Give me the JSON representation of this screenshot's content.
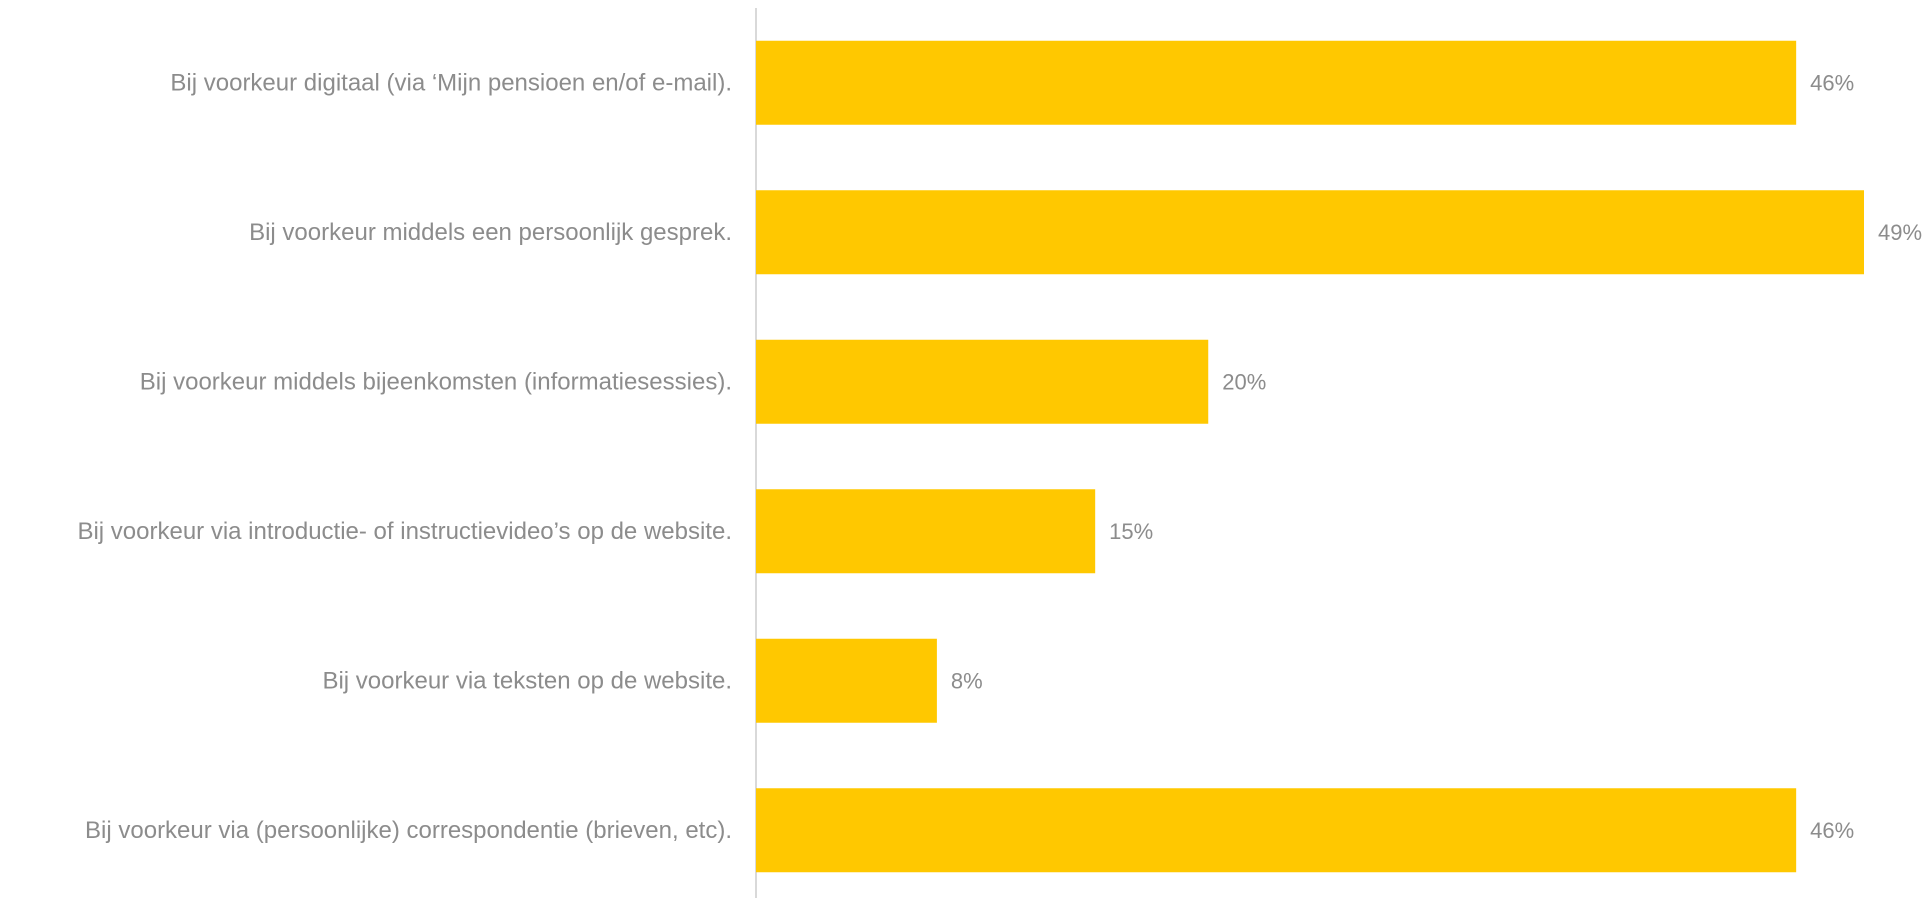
{
  "chart_data": {
    "type": "bar",
    "orientation": "horizontal",
    "categories": [
      "Bij voorkeur digitaal (via ‘Mijn pensioen en/of e-mail).",
      "Bij voorkeur middels een persoonlijk gesprek.",
      "Bij voorkeur middels bijeenkomsten (informatiesessies).",
      "Bij voorkeur via introductie- of instructievideo’s op de website.",
      "Bij voorkeur via teksten op de website.",
      "Bij voorkeur via (persoonlijke) correspondentie (brieven, etc)."
    ],
    "values": [
      46,
      49,
      20,
      15,
      8,
      46
    ],
    "value_labels": [
      "46%",
      "49%",
      "20%",
      "15%",
      "8%",
      "46%"
    ],
    "title": "",
    "xlabel": "",
    "ylabel": "",
    "xlim": [
      0,
      49
    ],
    "grid": false,
    "legend": "none",
    "colors": {
      "bar": "#FFC800",
      "text": "#8C8C8C",
      "axis": "#D9D9D9"
    }
  }
}
